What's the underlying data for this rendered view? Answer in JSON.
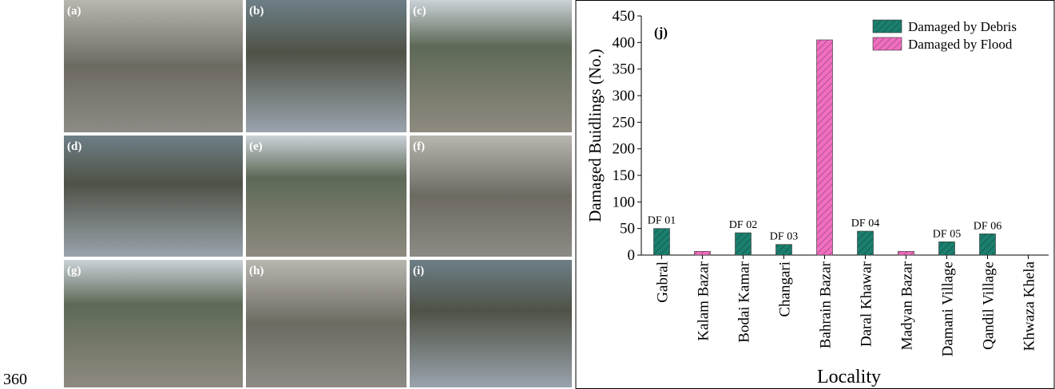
{
  "page_number": "360",
  "photos": {
    "labels": [
      "(a)",
      "(b)",
      "(c)",
      "(d)",
      "(e)",
      "(f)",
      "(g)",
      "(h)",
      "(i)"
    ]
  },
  "chart_data": {
    "type": "bar",
    "panel_label": "(j)",
    "x_label": "Locality",
    "y_label": "Damaged Buidlings (No.)",
    "categories": [
      "Gabral",
      "Kalam Bazar",
      "Bodai Kamar",
      "Changari",
      "Bahrain Bazar",
      "Daral Khawar",
      "Madyan Bazar",
      "Damani Village",
      "Qandil Village",
      "Khwaza Khela"
    ],
    "series": [
      {
        "name": "Damaged by Debris",
        "color": "#1b7f6e",
        "values": [
          50,
          null,
          42,
          20,
          null,
          45,
          null,
          25,
          40,
          null
        ],
        "labels": [
          "DF 01",
          null,
          "DF 02",
          "DF 03",
          null,
          "DF 04",
          null,
          "DF 05",
          "DF 06",
          null
        ]
      },
      {
        "name": "Damaged by Flood",
        "color": "#f06ec0",
        "values": [
          null,
          7,
          null,
          null,
          405,
          null,
          7,
          null,
          null,
          null
        ]
      }
    ],
    "ylim": [
      0,
      450
    ],
    "yticks": [
      0,
      50,
      100,
      150,
      200,
      250,
      300,
      350,
      400,
      450
    ],
    "legend": "top-right",
    "grid": false
  }
}
